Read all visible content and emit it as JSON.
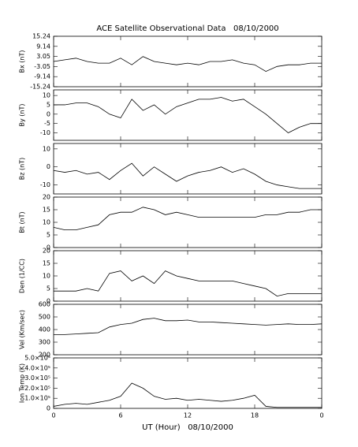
{
  "title": "ACE Satellite Observational Data   08/10/2000",
  "xlabel": "UT (Hour)   08/10/2000",
  "chart_data": [
    {
      "type": "line",
      "ylabel": "Bx (nT)",
      "x": [
        0,
        1,
        2,
        3,
        4,
        5,
        6,
        7,
        8,
        9,
        10,
        11,
        12,
        13,
        14,
        15,
        16,
        17,
        18,
        19,
        20,
        21,
        22,
        23,
        24
      ],
      "values": [
        0,
        1,
        2,
        0,
        -1,
        -1,
        2,
        -2,
        3,
        0,
        -1,
        -2,
        -1,
        -2,
        0,
        0,
        1,
        -1,
        -2,
        -6,
        -3,
        -2,
        -2,
        -1,
        -1
      ],
      "ylim": [
        -15.24,
        15.24
      ],
      "yticks": [
        15.24,
        9.14,
        3.05,
        -3.05,
        -9.14,
        -15.24
      ]
    },
    {
      "type": "line",
      "ylabel": "By (nT)",
      "x": [
        0,
        1,
        2,
        3,
        4,
        5,
        6,
        7,
        8,
        9,
        10,
        11,
        12,
        13,
        14,
        15,
        16,
        17,
        18,
        19,
        20,
        21,
        22,
        23,
        24
      ],
      "values": [
        5,
        5,
        6,
        6,
        4,
        0,
        -2,
        8,
        2,
        5,
        0,
        4,
        6,
        8,
        8,
        9,
        7,
        8,
        4,
        0,
        -5,
        -10,
        -7,
        -5,
        -5
      ],
      "ylim": [
        -14,
        13
      ],
      "yticks": [
        10,
        5,
        0,
        -5,
        -10
      ]
    },
    {
      "type": "line",
      "ylabel": "Bz (nT)",
      "x": [
        0,
        1,
        2,
        3,
        4,
        5,
        6,
        7,
        8,
        9,
        10,
        11,
        12,
        13,
        14,
        15,
        16,
        17,
        18,
        19,
        20,
        21,
        22,
        23,
        24
      ],
      "values": [
        -2,
        -3,
        -2,
        -4,
        -3,
        -7,
        -2,
        2,
        -5,
        0,
        -4,
        -8,
        -5,
        -3,
        -2,
        0,
        -3,
        -1,
        -4,
        -8,
        -10,
        -11,
        -12,
        -12,
        -12
      ],
      "ylim": [
        -15,
        13
      ],
      "yticks": [
        10,
        0,
        -10
      ]
    },
    {
      "type": "line",
      "ylabel": "Bt (nT)",
      "x": [
        0,
        1,
        2,
        3,
        4,
        5,
        6,
        7,
        8,
        9,
        10,
        11,
        12,
        13,
        14,
        15,
        16,
        17,
        18,
        19,
        20,
        21,
        22,
        23,
        24
      ],
      "values": [
        8,
        7,
        7,
        8,
        9,
        13,
        14,
        14,
        16,
        15,
        13,
        14,
        13,
        12,
        12,
        12,
        12,
        12,
        12,
        13,
        13,
        14,
        14,
        15,
        15
      ],
      "ylim": [
        0,
        20
      ],
      "yticks": [
        20,
        15,
        10,
        5,
        0
      ]
    },
    {
      "type": "line",
      "ylabel": "Den (1/CC)",
      "x": [
        0,
        1,
        2,
        3,
        4,
        5,
        6,
        7,
        8,
        9,
        10,
        11,
        12,
        13,
        14,
        15,
        16,
        17,
        18,
        19,
        20,
        21,
        22,
        23,
        24
      ],
      "values": [
        4,
        4,
        4,
        5,
        4,
        11,
        12,
        8,
        10,
        7,
        12,
        10,
        9,
        8,
        8,
        8,
        8,
        7,
        6,
        5,
        2,
        3,
        3,
        3,
        3
      ],
      "ylim": [
        0,
        20
      ],
      "yticks": [
        20,
        15,
        10,
        5,
        0
      ]
    },
    {
      "type": "line",
      "ylabel": "Vel (Km/sec)",
      "x": [
        0,
        1,
        2,
        3,
        4,
        5,
        6,
        7,
        8,
        9,
        10,
        11,
        12,
        13,
        14,
        15,
        16,
        17,
        18,
        19,
        20,
        21,
        22,
        23,
        24
      ],
      "values": [
        360,
        360,
        365,
        370,
        375,
        420,
        440,
        450,
        480,
        490,
        470,
        470,
        475,
        460,
        460,
        455,
        450,
        445,
        440,
        435,
        440,
        445,
        440,
        440,
        445
      ],
      "ylim": [
        200,
        600
      ],
      "yticks": [
        600,
        500,
        400,
        300,
        200
      ]
    },
    {
      "type": "line",
      "ylabel": "Ion Temp (K)",
      "x": [
        0,
        1,
        2,
        3,
        4,
        5,
        6,
        7,
        8,
        9,
        10,
        11,
        12,
        13,
        14,
        15,
        16,
        17,
        18,
        19,
        20,
        21,
        22,
        23,
        24
      ],
      "values": [
        20000,
        40000,
        50000,
        40000,
        60000,
        80000,
        120000,
        250000,
        200000,
        120000,
        90000,
        100000,
        80000,
        90000,
        80000,
        70000,
        80000,
        100000,
        130000,
        20000,
        10000,
        10000,
        10000,
        10000,
        10000
      ],
      "ylim": [
        0,
        500000
      ],
      "yticks": [
        {
          "value": 500000,
          "label": "5.0×10⁵"
        },
        {
          "value": 400000,
          "label": "4.0×10⁵"
        },
        {
          "value": 300000,
          "label": "3.0×10⁵"
        },
        {
          "value": 200000,
          "label": "2.0×10⁵"
        },
        {
          "value": 100000,
          "label": "1.0×10⁵"
        },
        0
      ],
      "xlim": [
        0,
        24
      ],
      "xticks": [
        0,
        6,
        12,
        18,
        {
          "value": 24,
          "label": "0"
        }
      ]
    }
  ]
}
